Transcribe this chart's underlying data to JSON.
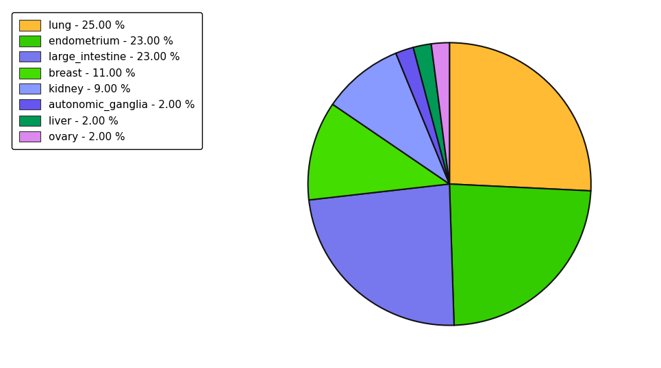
{
  "labels": [
    "lung",
    "endometrium",
    "large_intestine",
    "breast",
    "kidney",
    "autonomic_ganglia",
    "liver",
    "ovary"
  ],
  "values": [
    25.0,
    23.0,
    23.0,
    11.0,
    9.0,
    2.0,
    2.0,
    2.0
  ],
  "colors": [
    "#FFBB33",
    "#33CC00",
    "#7777EE",
    "#44DD00",
    "#8899FF",
    "#6655EE",
    "#009955",
    "#DD88EE"
  ],
  "legend_labels": [
    "lung - 25.00 %",
    "endometrium - 23.00 %",
    "large_intestine - 23.00 %",
    "breast - 11.00 %",
    "kidney - 9.00 %",
    "autonomic_ganglia - 2.00 %",
    "liver - 2.00 %",
    "ovary - 2.00 %"
  ],
  "legend_colors": [
    "#FFBB33",
    "#33CC00",
    "#7777EE",
    "#44DD00",
    "#8899FF",
    "#6655EE",
    "#009955",
    "#DD88EE"
  ],
  "startangle": 90,
  "figsize": [
    9.65,
    5.38
  ],
  "dpi": 100,
  "edgecolor": "#111111",
  "linewidth": 1.5
}
